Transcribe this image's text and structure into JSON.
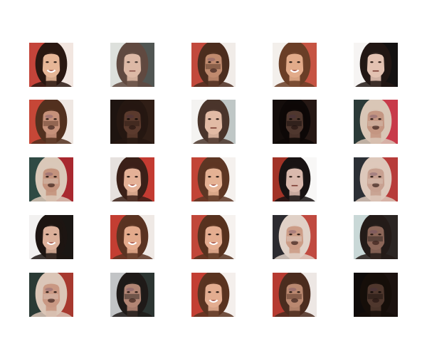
{
  "figure": {
    "background": "#ffffff",
    "rows": 5,
    "cols": 5,
    "axes_visible": false
  },
  "samples": [
    {
      "bg": "#c4443a",
      "bg2": "#f2e6e0",
      "skin": "#e6b697",
      "hair": "#2a1812",
      "hair_side": "both",
      "expression": "smile",
      "quality": "clear"
    },
    {
      "bg": "#d9dcd8",
      "bg2": "#3a3f3c",
      "skin": "#d9b09a",
      "hair": "#4a3026",
      "hair_side": "both",
      "expression": "neutral",
      "quality": "blurry"
    },
    {
      "bg": "#c2493c",
      "bg2": "#f1ece8",
      "skin": "#c08a6e",
      "hair": "#4c2d1f",
      "hair_side": "both",
      "expression": "distorted",
      "quality": "distorted"
    },
    {
      "bg": "#f3efeb",
      "bg2": "#c65443",
      "skin": "#e2ab8a",
      "hair": "#6a3e27",
      "hair_side": "both",
      "expression": "smile",
      "quality": "clear"
    },
    {
      "bg": "#f6f4f3",
      "bg2": "#141212",
      "skin": "#e3c2b2",
      "hair": "#221714",
      "hair_side": "both",
      "expression": "neutral",
      "quality": "clear"
    },
    {
      "bg": "#c64737",
      "bg2": "#efe7e2",
      "skin": "#c6917a",
      "hair": "#52301f",
      "hair_side": "both",
      "expression": "distorted",
      "quality": "distorted"
    },
    {
      "bg": "#2f1f1a",
      "bg2": "#4a2e22",
      "skin": "#8c5a45",
      "hair": "#3a241b",
      "hair_side": "both",
      "expression": "distorted",
      "quality": "dark"
    },
    {
      "bg": "#f4f3f1",
      "bg2": "#bfc7c6",
      "skin": "#e2bba5",
      "hair": "#4a352b",
      "hair_side": "both",
      "expression": "neutral",
      "quality": "clear"
    },
    {
      "bg": "#1f1412",
      "bg2": "#3b2620",
      "skin": "#7a5547",
      "hair": "#150d0b",
      "hair_side": "both",
      "expression": "distorted",
      "quality": "dark"
    },
    {
      "bg": "#2b3a38",
      "bg2": "#c83a4a",
      "skin": "#c49682",
      "hair": "#d9c6b6",
      "hair_side": "both",
      "expression": "distorted",
      "quality": "distorted"
    },
    {
      "bg": "#2f4a44",
      "bg2": "#a8282f",
      "skin": "#c4937d",
      "hair": "#dac8b8",
      "hair_side": "both",
      "expression": "distorted",
      "quality": "distorted"
    },
    {
      "bg": "#e6e1de",
      "bg2": "#c33b32",
      "skin": "#e4b197",
      "hair": "#3b2018",
      "hair_side": "both",
      "expression": "smile",
      "quality": "clear"
    },
    {
      "bg": "#c24436",
      "bg2": "#f5f1ee",
      "skin": "#e5b294",
      "hair": "#5d3624",
      "hair_side": "both",
      "expression": "smile",
      "quality": "clear"
    },
    {
      "bg": "#a23327",
      "bg2": "#f8f7f6",
      "skin": "#dab9ad",
      "hair": "#191313",
      "hair_side": "both",
      "expression": "neutral",
      "quality": "clear"
    },
    {
      "bg": "#2b2f35",
      "bg2": "#b73c3a",
      "skin": "#c7a090",
      "hair": "#ddc8bb",
      "hair_side": "both",
      "expression": "distorted",
      "quality": "distorted"
    },
    {
      "bg": "#f2f1f0",
      "bg2": "#1a1613",
      "skin": "#dcb09a",
      "hair": "#1d1512",
      "hair_side": "both",
      "expression": "smile",
      "quality": "clear"
    },
    {
      "bg": "#c33e32",
      "bg2": "#efe9e5",
      "skin": "#e3aa8c",
      "hair": "#5a3322",
      "hair_side": "both",
      "expression": "smile",
      "quality": "clear"
    },
    {
      "bg": "#c14739",
      "bg2": "#f6f2ef",
      "skin": "#e4ad90",
      "hair": "#57321f",
      "hair_side": "both",
      "expression": "smile",
      "quality": "clear"
    },
    {
      "bg": "#2c2b30",
      "bg2": "#c04a40",
      "skin": "#cc9c86",
      "hair": "#e0d1c7",
      "hair_side": "both",
      "expression": "distorted",
      "quality": "distorted"
    },
    {
      "bg": "#c9d8d7",
      "bg2": "#2b2523",
      "skin": "#8c6658",
      "hair": "#241b18",
      "hair_side": "both",
      "expression": "distorted",
      "quality": "distorted"
    },
    {
      "bg": "#2a3a35",
      "bg2": "#a7392f",
      "skin": "#c99883",
      "hair": "#dbc6b7",
      "hair_side": "both",
      "expression": "distorted",
      "quality": "distorted"
    },
    {
      "bg": "#c2c4c6",
      "bg2": "#2c3532",
      "skin": "#b28574",
      "hair": "#1f1a18",
      "hair_side": "both",
      "expression": "distorted",
      "quality": "distorted"
    },
    {
      "bg": "#c33f33",
      "bg2": "#f4efec",
      "skin": "#e3ad90",
      "hair": "#5a3421",
      "hair_side": "both",
      "expression": "smile",
      "quality": "clear"
    },
    {
      "bg": "#b63b31",
      "bg2": "#ede7e4",
      "skin": "#ba8870",
      "hair": "#4b2c1f",
      "hair_side": "both",
      "expression": "distorted",
      "quality": "distorted"
    },
    {
      "bg": "#171210",
      "bg2": "#2a1d17",
      "skin": "#7a5546",
      "hair": "#22160f",
      "hair_side": "both",
      "expression": "distorted",
      "quality": "dark"
    }
  ]
}
